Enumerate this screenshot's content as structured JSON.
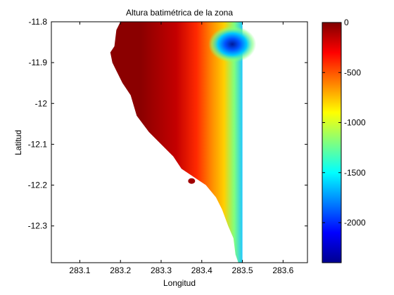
{
  "chart_data": {
    "type": "heatmap",
    "title": "Altura batimétrica de la zona",
    "xlabel": "Longitud",
    "ylabel": "Latitud",
    "xlim": [
      283.03,
      283.66
    ],
    "ylim": [
      -12.39,
      -11.8
    ],
    "xticks": [
      283.1,
      283.2,
      283.3,
      283.4,
      283.5,
      283.6
    ],
    "xtick_labels": [
      "283.1",
      "283.2",
      "283.3",
      "283.4",
      "283.5",
      "283.6"
    ],
    "yticks": [
      -11.8,
      -11.9,
      -12,
      -12.1,
      -12.2,
      -12.3
    ],
    "ytick_labels": [
      "-11.8",
      "-11.9",
      "-12",
      "-12.1",
      "-12.2",
      "-12.3"
    ],
    "grid": false,
    "colormap": "jet",
    "clim": [
      -2400,
      0
    ],
    "colorbar": {
      "ticks": [
        0,
        -500,
        -1000,
        -1500,
        -2000
      ],
      "tick_labels": [
        "0",
        "-500",
        "-1000",
        "-1500",
        "-2000"
      ]
    },
    "data_extent": {
      "lon_max": 283.5
    },
    "coastline": [
      [
        283.2,
        -11.8
      ],
      [
        283.19,
        -11.82
      ],
      [
        283.185,
        -11.86
      ],
      [
        283.175,
        -11.875
      ],
      [
        283.18,
        -11.9
      ],
      [
        283.19,
        -11.92
      ],
      [
        283.205,
        -11.95
      ],
      [
        283.225,
        -11.98
      ],
      [
        283.24,
        -12.03
      ],
      [
        283.27,
        -12.07
      ],
      [
        283.3,
        -12.1
      ],
      [
        283.33,
        -12.13
      ],
      [
        283.35,
        -12.16
      ],
      [
        283.38,
        -12.18
      ],
      [
        283.41,
        -12.2
      ],
      [
        283.435,
        -12.23
      ],
      [
        283.45,
        -12.26
      ],
      [
        283.465,
        -12.3
      ],
      [
        283.478,
        -12.33
      ],
      [
        283.483,
        -12.37
      ],
      [
        283.49,
        -12.39
      ]
    ],
    "deep_spot": {
      "lon": 283.475,
      "lat": -11.855,
      "value": -2300
    },
    "island": {
      "lon": 283.375,
      "lat": -12.19
    }
  }
}
